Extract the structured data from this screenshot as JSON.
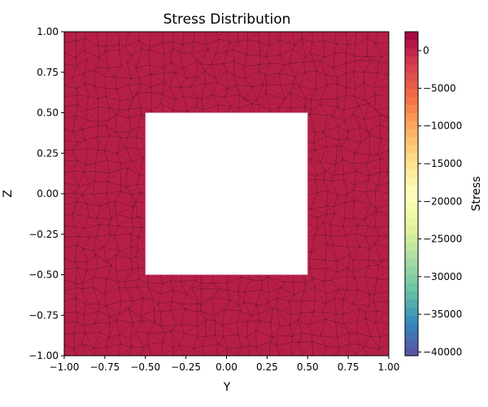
{
  "chart_data": {
    "type": "heatmap",
    "title": "Stress Distribution",
    "xlabel": "Y",
    "ylabel": "Z",
    "xlim": [
      -1.0,
      1.0
    ],
    "ylim": [
      -1.0,
      1.0
    ],
    "x_ticks": [
      "−1.00",
      "−0.75",
      "−0.50",
      "−0.25",
      "0.00",
      "0.25",
      "0.50",
      "0.75",
      "1.00"
    ],
    "y_ticks": [
      "−1.00",
      "−0.75",
      "−0.50",
      "−0.25",
      "0.00",
      "0.25",
      "0.50",
      "0.75",
      "1.00"
    ],
    "x_tick_values": [
      -1.0,
      -0.75,
      -0.5,
      -0.25,
      0.0,
      0.25,
      0.5,
      0.75,
      1.0
    ],
    "y_tick_values": [
      -1.0,
      -0.75,
      -0.5,
      -0.25,
      0.0,
      0.25,
      0.5,
      0.75,
      1.0
    ],
    "field_value": 0,
    "field_color": "#b81f48",
    "hole": {
      "y_range": [
        -0.5,
        0.5
      ],
      "z_range": [
        -0.5,
        0.5
      ]
    },
    "mesh": "triangular, dark edges",
    "colorbar": {
      "label": "Stress",
      "colormap": "Spectral",
      "range": [
        -40500,
        2500
      ],
      "tick_values": [
        0,
        -5000,
        -10000,
        -15000,
        -20000,
        -25000,
        -30000,
        -35000,
        -40000
      ],
      "tick_labels": [
        "0",
        "−5000",
        "−10000",
        "−15000",
        "−20000",
        "−25000",
        "−30000",
        "−35000",
        "−40000"
      ]
    },
    "grid": false,
    "legend": "none"
  }
}
